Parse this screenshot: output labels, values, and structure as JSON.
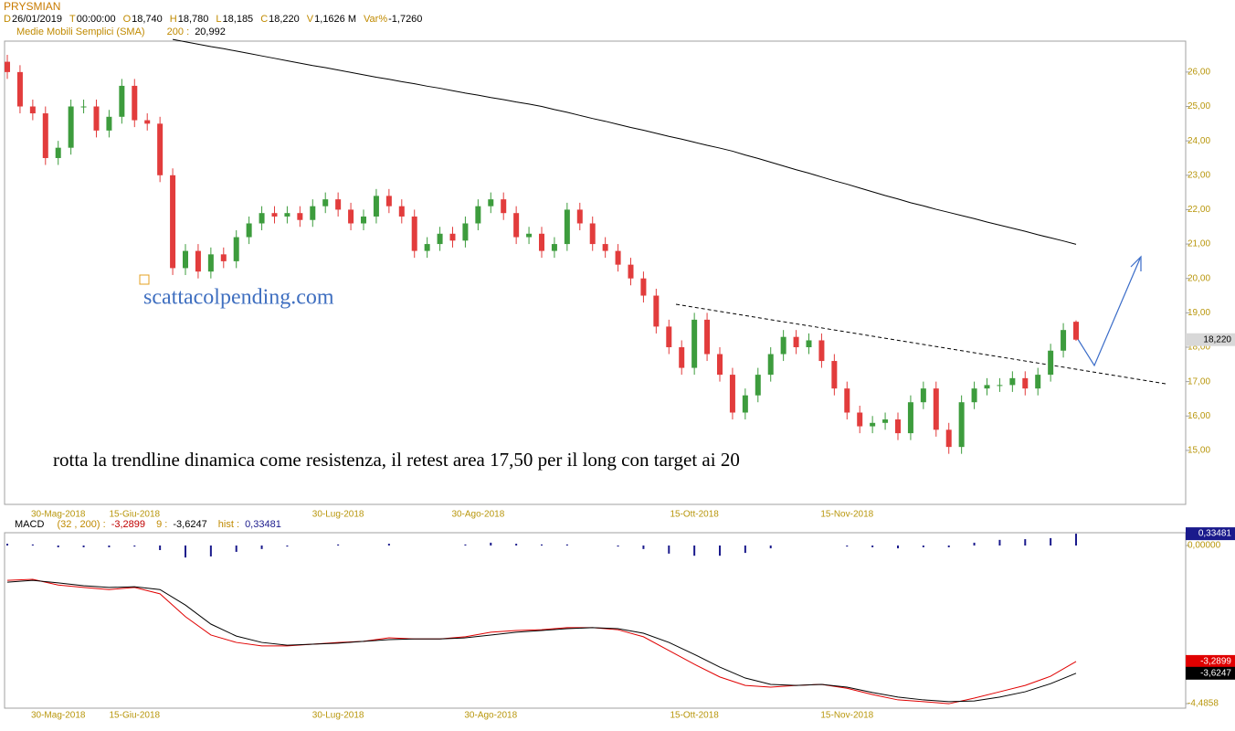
{
  "header": {
    "symbol": "PRYSMIAN",
    "fields": [
      {
        "key": "D",
        "value": "26/01/2019"
      },
      {
        "key": "T",
        "value": "00:00:00"
      },
      {
        "key": "O",
        "value": "18,740"
      },
      {
        "key": "H",
        "value": "18,780"
      },
      {
        "key": "L",
        "value": "18,185"
      },
      {
        "key": "C",
        "value": "18,220"
      },
      {
        "key": "V",
        "value": "1,1626 M"
      },
      {
        "key": "Var%",
        "value": "-1,7260"
      }
    ]
  },
  "chart_data": [
    {
      "type": "candlestick",
      "categories": [
        null,
        null,
        null,
        null,
        "30-Mag-2018",
        null,
        null,
        null,
        null,
        null,
        "15-Giu-2018",
        null,
        null,
        null,
        null,
        null,
        null,
        null,
        null,
        null,
        null,
        null,
        null,
        null,
        null,
        null,
        "30-Lug-2018",
        null,
        null,
        null,
        null,
        null,
        null,
        null,
        null,
        null,
        null,
        "30-Ago-2018",
        null,
        null,
        null,
        null,
        null,
        null,
        null,
        null,
        null,
        null,
        null,
        null,
        null,
        null,
        null,
        null,
        "15-Ott-2018",
        null,
        null,
        null,
        null,
        null,
        null,
        null,
        null,
        null,
        null,
        null,
        "15-Nov-2018",
        null,
        null,
        null,
        null,
        null,
        null,
        null,
        null,
        null,
        null,
        null,
        null,
        null,
        null,
        null,
        null,
        null,
        null
      ],
      "open": [
        26.3,
        26.0,
        25.0,
        24.8,
        23.5,
        23.8,
        25.0,
        25.0,
        24.3,
        24.7,
        25.6,
        24.6,
        24.5,
        23.0,
        20.3,
        20.8,
        20.2,
        20.7,
        20.5,
        21.2,
        21.6,
        21.9,
        21.8,
        21.9,
        21.7,
        22.1,
        22.3,
        22.0,
        21.6,
        21.8,
        22.4,
        22.1,
        21.8,
        20.8,
        21.0,
        21.3,
        21.1,
        21.6,
        22.1,
        22.3,
        21.9,
        21.2,
        21.3,
        20.8,
        21.0,
        22.0,
        21.6,
        21.0,
        20.8,
        20.4,
        20.0,
        19.5,
        18.6,
        18.0,
        17.4,
        18.8,
        17.8,
        17.2,
        16.1,
        16.6,
        17.2,
        17.8,
        18.3,
        18.0,
        18.2,
        17.6,
        16.8,
        16.1,
        15.7,
        15.8,
        15.9,
        15.5,
        16.4,
        16.8,
        15.6,
        15.1,
        16.4,
        16.8,
        16.9,
        16.9,
        17.1,
        16.8,
        17.2,
        17.9,
        18.74
      ],
      "high": [
        26.5,
        26.2,
        25.2,
        25.0,
        24.0,
        25.2,
        25.2,
        25.2,
        24.9,
        25.8,
        25.8,
        24.8,
        24.7,
        23.2,
        21.0,
        21.0,
        20.9,
        20.9,
        21.4,
        21.8,
        22.1,
        22.1,
        22.1,
        22.1,
        22.3,
        22.5,
        22.5,
        22.2,
        22.0,
        22.6,
        22.6,
        22.3,
        22.0,
        21.2,
        21.5,
        21.5,
        21.8,
        22.3,
        22.5,
        22.5,
        22.1,
        21.5,
        21.5,
        21.2,
        22.2,
        22.2,
        21.8,
        21.2,
        21.0,
        20.6,
        20.2,
        19.7,
        18.8,
        18.2,
        19.0,
        19.0,
        18.0,
        17.4,
        16.8,
        17.4,
        18.0,
        18.5,
        18.5,
        18.4,
        18.4,
        17.8,
        17.0,
        16.3,
        16.0,
        16.1,
        16.1,
        16.6,
        17.0,
        17.0,
        15.8,
        16.6,
        17.0,
        17.1,
        17.1,
        17.3,
        17.3,
        17.4,
        18.1,
        18.7,
        18.78
      ],
      "low": [
        25.8,
        24.8,
        24.6,
        23.3,
        23.3,
        23.6,
        24.8,
        24.1,
        24.1,
        24.5,
        24.4,
        24.3,
        22.8,
        20.1,
        20.1,
        20.0,
        20.0,
        20.3,
        20.3,
        21.0,
        21.4,
        21.6,
        21.6,
        21.5,
        21.5,
        21.9,
        21.8,
        21.4,
        21.4,
        21.6,
        21.9,
        21.6,
        20.6,
        20.6,
        20.8,
        20.9,
        20.9,
        21.4,
        21.9,
        21.7,
        21.0,
        21.0,
        20.6,
        20.6,
        20.8,
        21.4,
        20.8,
        20.6,
        20.2,
        19.8,
        19.3,
        18.4,
        17.8,
        17.2,
        17.2,
        17.6,
        17.0,
        15.9,
        15.9,
        16.4,
        17.0,
        17.6,
        17.8,
        17.8,
        17.4,
        16.6,
        15.9,
        15.5,
        15.5,
        15.6,
        15.3,
        15.3,
        16.2,
        15.4,
        14.9,
        14.9,
        16.2,
        16.6,
        16.7,
        16.7,
        16.6,
        16.6,
        17.0,
        17.7,
        18.185
      ],
      "close": [
        26.0,
        25.0,
        24.8,
        23.5,
        23.8,
        25.0,
        25.0,
        24.3,
        24.7,
        25.6,
        24.6,
        24.5,
        23.0,
        20.3,
        20.8,
        20.2,
        20.7,
        20.5,
        21.2,
        21.6,
        21.9,
        21.8,
        21.9,
        21.7,
        22.1,
        22.3,
        22.0,
        21.6,
        21.8,
        22.4,
        22.1,
        21.8,
        20.8,
        21.0,
        21.3,
        21.1,
        21.6,
        22.1,
        22.3,
        21.9,
        21.2,
        21.3,
        20.8,
        21.0,
        22.0,
        21.6,
        21.0,
        20.8,
        20.4,
        20.0,
        19.5,
        18.6,
        18.0,
        17.4,
        18.8,
        17.8,
        17.2,
        16.1,
        16.6,
        17.2,
        17.8,
        18.3,
        18.0,
        18.2,
        17.6,
        16.8,
        16.1,
        15.7,
        15.8,
        15.9,
        15.5,
        16.4,
        16.8,
        15.6,
        15.1,
        16.4,
        16.8,
        16.9,
        16.9,
        17.1,
        16.8,
        17.2,
        17.9,
        18.5,
        18.22
      ],
      "up_color": "#3d9c3d",
      "down_color": "#e23c3c",
      "last_label": "18,220",
      "series": [
        {
          "name": "Medie Mobili Semplici (SMA)",
          "period_label": "200 :",
          "value_label": "20,992",
          "color": "#000000",
          "values": [
            null,
            null,
            null,
            null,
            null,
            null,
            null,
            null,
            null,
            null,
            null,
            null,
            null,
            26.95,
            26.88,
            26.81,
            26.74,
            26.68,
            26.61,
            26.54,
            26.47,
            26.4,
            26.33,
            26.26,
            26.19,
            26.13,
            26.06,
            25.99,
            25.92,
            25.85,
            25.79,
            25.72,
            25.66,
            25.59,
            25.53,
            25.46,
            25.39,
            25.33,
            25.26,
            25.2,
            25.13,
            25.07,
            25.0,
            24.91,
            24.83,
            24.74,
            24.65,
            24.57,
            24.48,
            24.39,
            24.31,
            24.22,
            24.13,
            24.05,
            23.96,
            23.87,
            23.79,
            23.7,
            23.59,
            23.49,
            23.38,
            23.27,
            23.16,
            23.06,
            22.95,
            22.84,
            22.74,
            22.63,
            22.52,
            22.41,
            22.31,
            22.2,
            22.11,
            22.01,
            21.92,
            21.83,
            21.74,
            21.64,
            21.55,
            21.46,
            21.37,
            21.27,
            21.18,
            21.09,
            20.992
          ]
        }
      ],
      "ylim": [
        13.43,
        26.9
      ],
      "yticks": [
        {
          "value": 15,
          "label": "15,00"
        },
        {
          "value": 16,
          "label": "16,00"
        },
        {
          "value": 17,
          "label": "17,00"
        },
        {
          "value": 18,
          "label": "18,00"
        },
        {
          "value": 19,
          "label": "19,00"
        },
        {
          "value": 20,
          "label": "20,00"
        },
        {
          "value": 21,
          "label": "21,00"
        },
        {
          "value": 22,
          "label": "22,00"
        },
        {
          "value": 23,
          "label": "23,00"
        },
        {
          "value": 24,
          "label": "24,00"
        },
        {
          "value": 25,
          "label": "25,00"
        },
        {
          "value": 26,
          "label": "26,00"
        }
      ],
      "annotations": [
        "scattacolpending.com",
        "rotta la trendline dinamica come resistenza, il retest area 17,50 per il long con target ai 20"
      ]
    },
    {
      "type": "macd",
      "title": "MACD",
      "categories": [
        null,
        null,
        "30-Mag-2018",
        null,
        null,
        "15-Giu-2018",
        null,
        null,
        null,
        null,
        null,
        null,
        null,
        "30-Lug-2018",
        null,
        null,
        null,
        null,
        null,
        "30-Ago-2018",
        null,
        null,
        null,
        null,
        null,
        null,
        null,
        "15-Ott-2018",
        null,
        null,
        null,
        null,
        null,
        "15-Nov-2018",
        null,
        null,
        null,
        null,
        null,
        null,
        null,
        null,
        null
      ],
      "series": [
        {
          "name": "(32 , 200) :",
          "color": "#e00000",
          "value_label": "-3,2899",
          "values": [
            -0.99,
            -0.96,
            -1.12,
            -1.19,
            -1.25,
            -1.19,
            -1.37,
            -2.02,
            -2.54,
            -2.75,
            -2.85,
            -2.85,
            -2.8,
            -2.75,
            -2.72,
            -2.62,
            -2.65,
            -2.65,
            -2.59,
            -2.46,
            -2.41,
            -2.39,
            -2.33,
            -2.33,
            -2.39,
            -2.59,
            -2.98,
            -3.37,
            -3.73,
            -3.97,
            -4.02,
            -3.97,
            -3.94,
            -4.05,
            -4.23,
            -4.38,
            -4.43,
            -4.49,
            -4.33,
            -4.15,
            -3.97,
            -3.71,
            -3.2899
          ]
        },
        {
          "name": "9 :",
          "color": "#000000",
          "value_label": "-3,6247",
          "values": [
            -1.04,
            -0.99,
            -1.06,
            -1.14,
            -1.19,
            -1.17,
            -1.25,
            -1.69,
            -2.23,
            -2.57,
            -2.75,
            -2.83,
            -2.8,
            -2.77,
            -2.72,
            -2.67,
            -2.65,
            -2.65,
            -2.62,
            -2.54,
            -2.46,
            -2.41,
            -2.36,
            -2.33,
            -2.36,
            -2.49,
            -2.75,
            -3.09,
            -3.45,
            -3.76,
            -3.94,
            -3.97,
            -3.94,
            -4.02,
            -4.17,
            -4.3,
            -4.38,
            -4.43,
            -4.41,
            -4.3,
            -4.15,
            -3.92,
            -3.6247
          ]
        },
        {
          "name": "hist :",
          "color": "#1a1a8c",
          "value_label": "0,33481",
          "style": "bar",
          "values": [
            0.05,
            0.03,
            -0.05,
            -0.05,
            -0.05,
            -0.03,
            -0.13,
            -0.34,
            -0.31,
            -0.18,
            -0.1,
            -0.03,
            0.0,
            0.03,
            0.0,
            0.05,
            0.0,
            0.0,
            0.03,
            0.08,
            0.05,
            0.03,
            0.03,
            0.0,
            -0.03,
            -0.1,
            -0.23,
            -0.29,
            -0.29,
            -0.21,
            -0.08,
            0.0,
            0.0,
            -0.03,
            -0.05,
            -0.08,
            -0.05,
            -0.05,
            0.08,
            0.16,
            0.18,
            0.21,
            0.33481
          ]
        }
      ],
      "ylim": [
        -4.615,
        0.363
      ],
      "yticks": [
        {
          "value": 0,
          "label": "0,00000"
        },
        {
          "value": -4.4858,
          "label": "-4,4858"
        }
      ]
    }
  ]
}
